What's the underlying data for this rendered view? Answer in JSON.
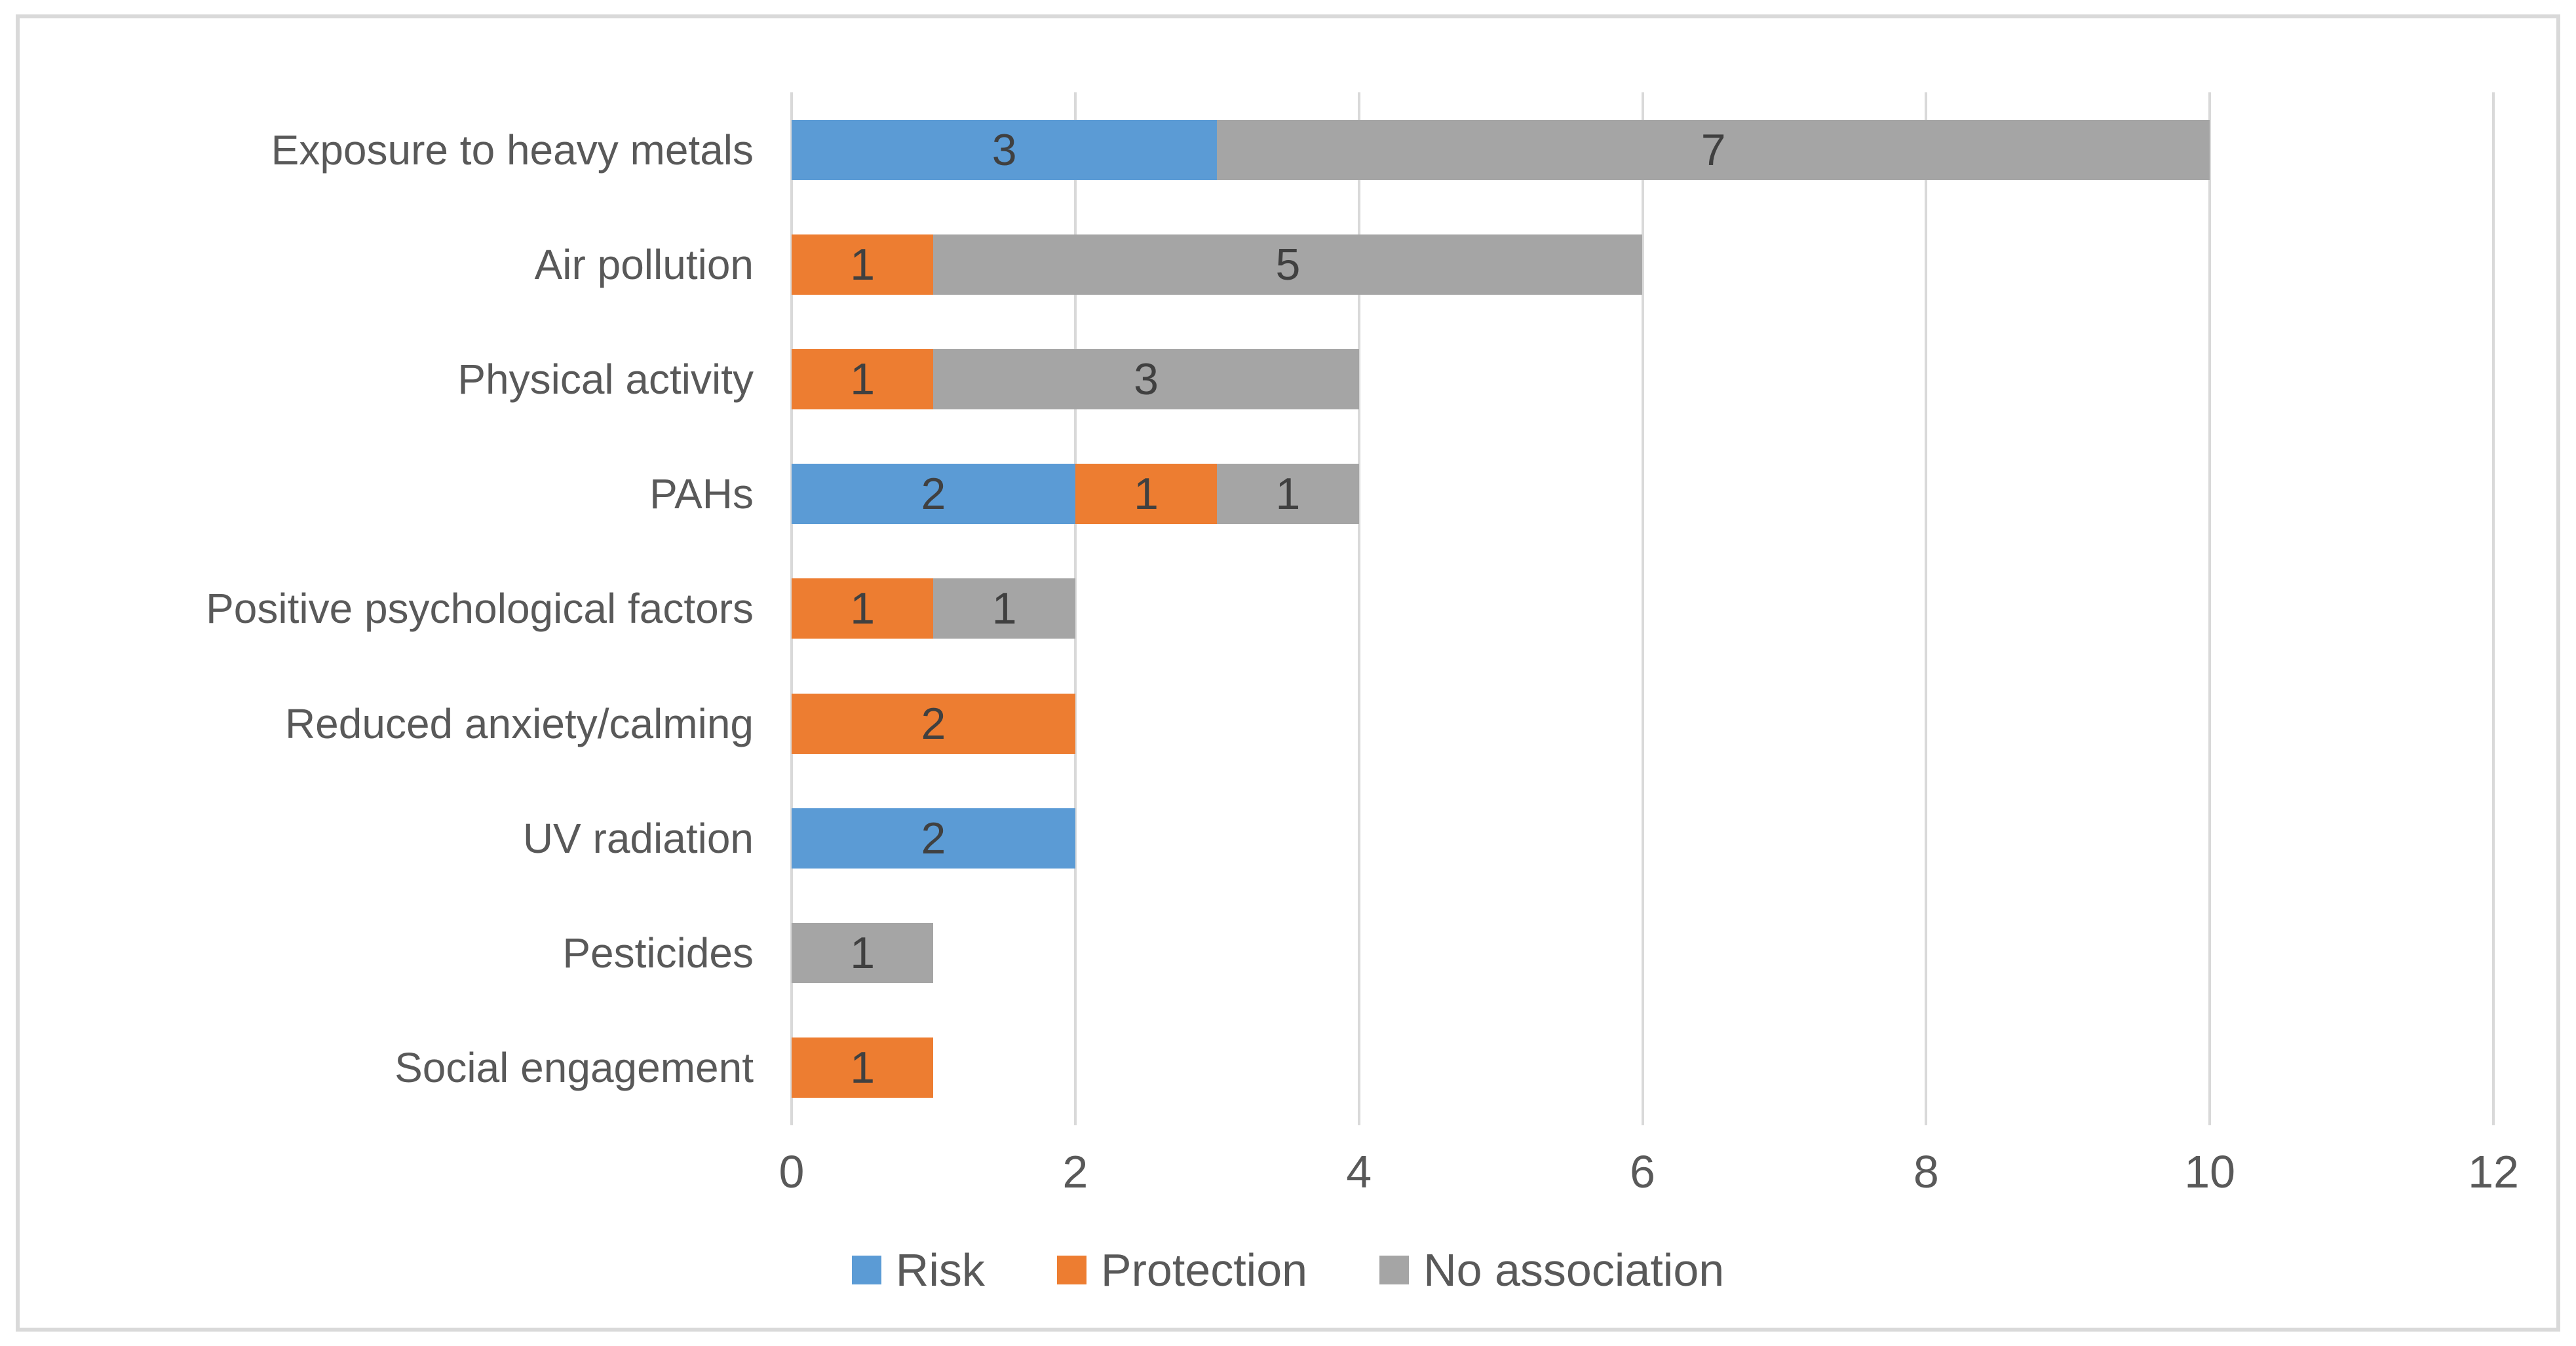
{
  "chart_data": {
    "type": "bar",
    "orientation": "horizontal",
    "stacked": true,
    "title": "",
    "xlabel": "",
    "ylabel": "",
    "categories": [
      "Exposure to heavy metals",
      "Air pollution",
      "Physical activity",
      "PAHs",
      "Positive psychological factors",
      "Reduced anxiety/calming",
      "UV radiation",
      "Pesticides",
      "Social engagement"
    ],
    "series": [
      {
        "name": "Risk",
        "color": "#5b9bd5",
        "values": [
          3,
          0,
          0,
          2,
          0,
          0,
          2,
          0,
          0
        ]
      },
      {
        "name": "Protection",
        "color": "#ed7d31",
        "values": [
          0,
          1,
          1,
          1,
          1,
          2,
          0,
          0,
          1
        ]
      },
      {
        "name": "No association",
        "color": "#a5a5a5",
        "values": [
          7,
          5,
          3,
          1,
          1,
          0,
          0,
          1,
          0
        ]
      }
    ],
    "totals": [
      10,
      6,
      4,
      4,
      2,
      2,
      2,
      1,
      1
    ],
    "x_ticks": [
      0,
      2,
      4,
      6,
      8,
      10,
      12
    ],
    "xlim": [
      0,
      12
    ],
    "grid": true,
    "data_labels": true,
    "legend_position": "bottom"
  },
  "style": {
    "gridline_color": "#d9d9d9",
    "frame_border_color": "#d9d9d9",
    "axis_text_color": "#595959",
    "data_label_color": "#404040"
  }
}
